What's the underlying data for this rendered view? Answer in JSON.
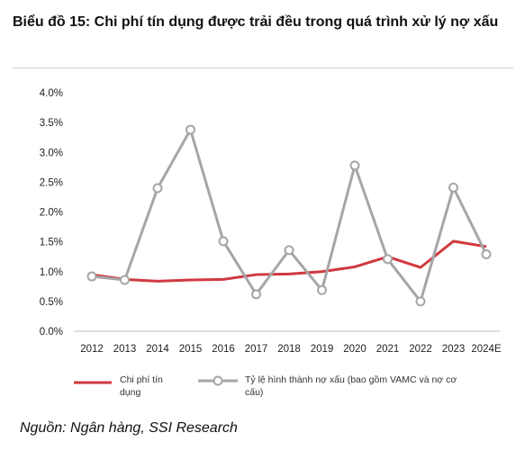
{
  "title": "Biểu đồ 15: Chi phí tín dụng được trải đều trong quá trình xử lý nợ xấu",
  "source": "Nguồn: Ngân hàng, SSI Research",
  "legend": {
    "s1_line1": "Chi phí tín",
    "s1_line2": "dụng",
    "s2_line1": "Tỷ lệ hình thành nợ xấu (bao gồm VAMC và nợ cơ",
    "s2_line2": "cấu)"
  },
  "colors": {
    "s1": "#d0393f",
    "s2": "#a6a6a6"
  },
  "chart_data": {
    "type": "line",
    "categories": [
      "2012",
      "2013",
      "2014",
      "2015",
      "2016",
      "2017",
      "2018",
      "2019",
      "2020",
      "2021",
      "2022",
      "2023",
      "2024E"
    ],
    "ylim": [
      0,
      4.0
    ],
    "yticks": [
      "0.0%",
      "0.5%",
      "1.0%",
      "1.5%",
      "2.0%",
      "2.5%",
      "3.0%",
      "3.5%",
      "4.0%"
    ],
    "series": [
      {
        "name": "Chi phí tín dụng",
        "color": "#d0393f",
        "markers": false,
        "values": [
          0.95,
          0.87,
          0.84,
          0.86,
          0.87,
          0.95,
          0.96,
          1.0,
          1.08,
          1.25,
          1.07,
          1.51,
          1.42
        ]
      },
      {
        "name": "Tỷ lệ hình thành nợ xấu (bao gồm VAMC và nợ cơ cấu)",
        "color": "#a6a6a6",
        "markers": true,
        "values": [
          0.92,
          0.86,
          2.4,
          3.38,
          1.51,
          0.62,
          1.36,
          0.69,
          2.78,
          1.21,
          0.5,
          2.41,
          1.29
        ]
      }
    ],
    "grid": false
  }
}
